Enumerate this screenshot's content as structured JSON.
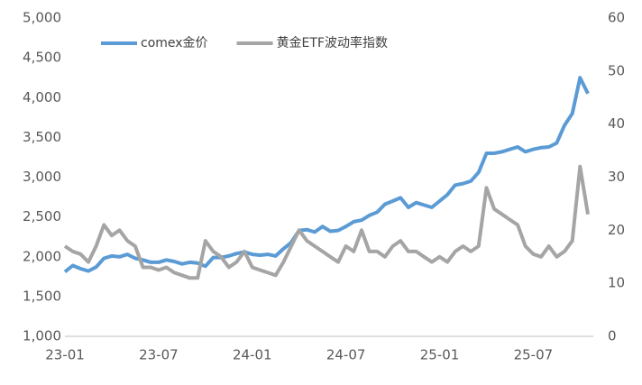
{
  "chart_data": {
    "type": "line",
    "categories": [
      "23-01",
      null,
      null,
      null,
      null,
      null,
      null,
      null,
      null,
      null,
      null,
      null,
      "23-07",
      null,
      null,
      null,
      null,
      null,
      null,
      null,
      null,
      null,
      null,
      null,
      "24-01",
      null,
      null,
      null,
      null,
      null,
      null,
      null,
      null,
      null,
      null,
      null,
      "24-07",
      null,
      null,
      null,
      null,
      null,
      null,
      null,
      null,
      null,
      null,
      null,
      "25-01",
      null,
      null,
      null,
      null,
      null,
      null,
      null,
      null,
      null,
      null,
      null,
      "25-07",
      null,
      null,
      null,
      null,
      null,
      null,
      null
    ],
    "series": [
      {
        "name": "comex金价",
        "color": "#5b9bd5",
        "axis": "y",
        "values": [
          1810,
          1890,
          1850,
          1820,
          1870,
          1980,
          2010,
          2000,
          2030,
          1980,
          1960,
          1930,
          1930,
          1960,
          1940,
          1910,
          1930,
          1920,
          1880,
          1990,
          1990,
          2010,
          2040,
          2060,
          2030,
          2020,
          2030,
          2010,
          2100,
          2180,
          2330,
          2340,
          2310,
          2380,
          2320,
          2330,
          2380,
          2440,
          2460,
          2520,
          2560,
          2660,
          2700,
          2740,
          2620,
          2680,
          2650,
          2620,
          2700,
          2780,
          2900,
          2920,
          2950,
          3060,
          3300,
          3300,
          3320,
          3350,
          3380,
          3320,
          3350,
          3370,
          3380,
          3430,
          3650,
          3800,
          4250,
          4050
        ]
      },
      {
        "name": "黄金ETF波动率指数",
        "color": "#a5a5a5",
        "axis": "y2",
        "values": [
          17,
          16,
          15.5,
          14,
          17,
          21,
          19,
          20,
          18,
          17,
          13,
          13,
          12.5,
          13,
          12,
          11.5,
          11,
          11,
          18,
          16,
          15,
          13,
          14,
          16,
          13,
          12.5,
          12,
          11.5,
          14,
          17,
          20,
          18,
          17,
          16,
          15,
          14,
          17,
          16,
          20,
          16,
          16,
          15,
          17,
          18,
          16,
          16,
          15,
          14,
          15,
          14,
          16,
          17,
          16,
          17,
          28,
          24,
          23,
          22,
          21,
          17,
          15.5,
          15,
          17,
          15,
          16,
          18,
          32,
          23
        ]
      }
    ],
    "ylim": [
      1000,
      5000
    ],
    "yticks": [
      {
        "value": 1000,
        "label": "1,000"
      },
      {
        "value": 1500,
        "label": "1,500"
      },
      {
        "value": 2000,
        "label": "2,000"
      },
      {
        "value": 2500,
        "label": "2,500"
      },
      {
        "value": 3000,
        "label": "3,000"
      },
      {
        "value": 3500,
        "label": "3,500"
      },
      {
        "value": 4000,
        "label": "4,000"
      },
      {
        "value": 4500,
        "label": "4,500"
      },
      {
        "value": 5000,
        "label": "5,000"
      }
    ],
    "y2lim": [
      0,
      60
    ],
    "y2ticks": [
      0,
      10,
      20,
      30,
      40,
      50,
      60
    ],
    "grid": false,
    "legend": "top-left"
  }
}
